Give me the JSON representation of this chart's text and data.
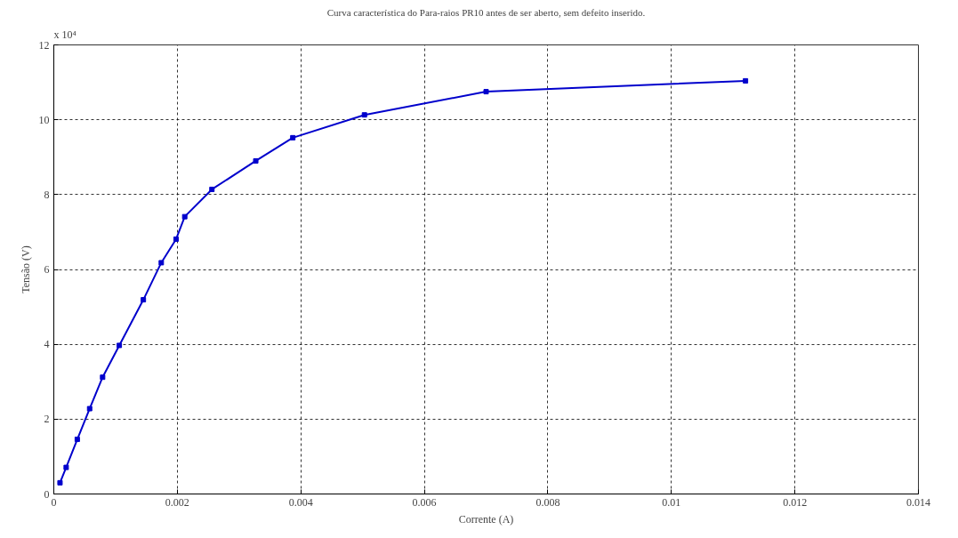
{
  "chart_data": {
    "type": "line",
    "title": "Curva característica do Para-raios PR10 antes de ser aberto, sem defeito inserido.",
    "xlabel": "Corrente (A)",
    "ylabel": "Tensão (V)",
    "annotations": [
      "x 10⁴"
    ],
    "x": [
      0.0001,
      0.0002,
      0.00038,
      0.00058,
      0.00079,
      0.00106,
      0.00145,
      0.00174,
      0.00198,
      0.00212,
      0.00256,
      0.00327,
      0.00387,
      0.00503,
      0.007,
      0.0112
    ],
    "series": [
      {
        "color": "#0000cc",
        "values": [
          0.3,
          0.71,
          1.46,
          2.28,
          3.12,
          3.97,
          5.19,
          6.18,
          6.81,
          7.41,
          8.14,
          8.9,
          9.52,
          10.13,
          10.75,
          11.04
        ]
      }
    ],
    "xlim": [
      0,
      0.014
    ],
    "ylim": [
      0,
      12
    ],
    "xticks": [
      0,
      0.002,
      0.004,
      0.006,
      0.008,
      0.01,
      0.012,
      0.014
    ],
    "yticks": [
      0,
      2,
      4,
      6,
      8,
      10,
      12
    ],
    "grid": true,
    "marker": "square",
    "line_style": "solid"
  }
}
